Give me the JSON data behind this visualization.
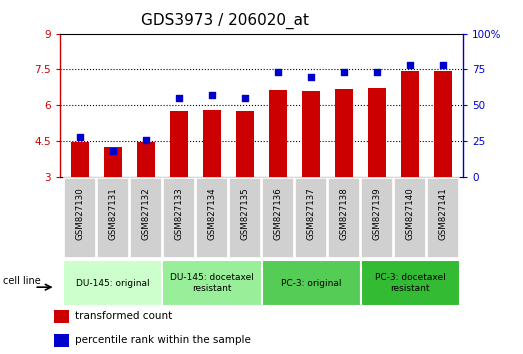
{
  "title": "GDS3973 / 206020_at",
  "samples": [
    "GSM827130",
    "GSM827131",
    "GSM827132",
    "GSM827133",
    "GSM827134",
    "GSM827135",
    "GSM827136",
    "GSM827137",
    "GSM827138",
    "GSM827139",
    "GSM827140",
    "GSM827141"
  ],
  "red_values": [
    4.45,
    4.25,
    4.45,
    5.75,
    5.82,
    5.78,
    6.65,
    6.62,
    6.7,
    6.72,
    7.45,
    7.45
  ],
  "blue_values": [
    28,
    18,
    26,
    55,
    57,
    55,
    73,
    70,
    73,
    73,
    78,
    78
  ],
  "ylim_left": [
    3,
    9
  ],
  "ylim_right": [
    0,
    100
  ],
  "yticks_left": [
    3,
    4.5,
    6,
    7.5,
    9
  ],
  "yticks_right": [
    0,
    25,
    50,
    75,
    100
  ],
  "ytick_labels_left": [
    "3",
    "4.5",
    "6",
    "7.5",
    "9"
  ],
  "ytick_labels_right": [
    "0",
    "25",
    "50",
    "75",
    "100%"
  ],
  "hlines": [
    4.5,
    6.0,
    7.5
  ],
  "bar_color": "#cc0000",
  "dot_color": "#0000cc",
  "bar_bottom": 3,
  "groups": [
    {
      "label": "DU-145: original",
      "start": 0,
      "end": 3
    },
    {
      "label": "DU-145: docetaxel\nresistant",
      "start": 3,
      "end": 6
    },
    {
      "label": "PC-3: original",
      "start": 6,
      "end": 9
    },
    {
      "label": "PC-3: docetaxel\nresistant",
      "start": 9,
      "end": 12
    }
  ],
  "group_colors": [
    "#ccffcc",
    "#99ee99",
    "#55cc55",
    "#33bb33"
  ],
  "cell_line_label": "cell line",
  "legend_items": [
    {
      "color": "#cc0000",
      "label": "transformed count"
    },
    {
      "color": "#0000cc",
      "label": "percentile rank within the sample"
    }
  ],
  "title_fontsize": 11,
  "tick_label_fontsize": 7.5,
  "left_tick_color": "#cc0000",
  "right_tick_color": "#0000cc",
  "tickbox_color": "#d0d0d0"
}
